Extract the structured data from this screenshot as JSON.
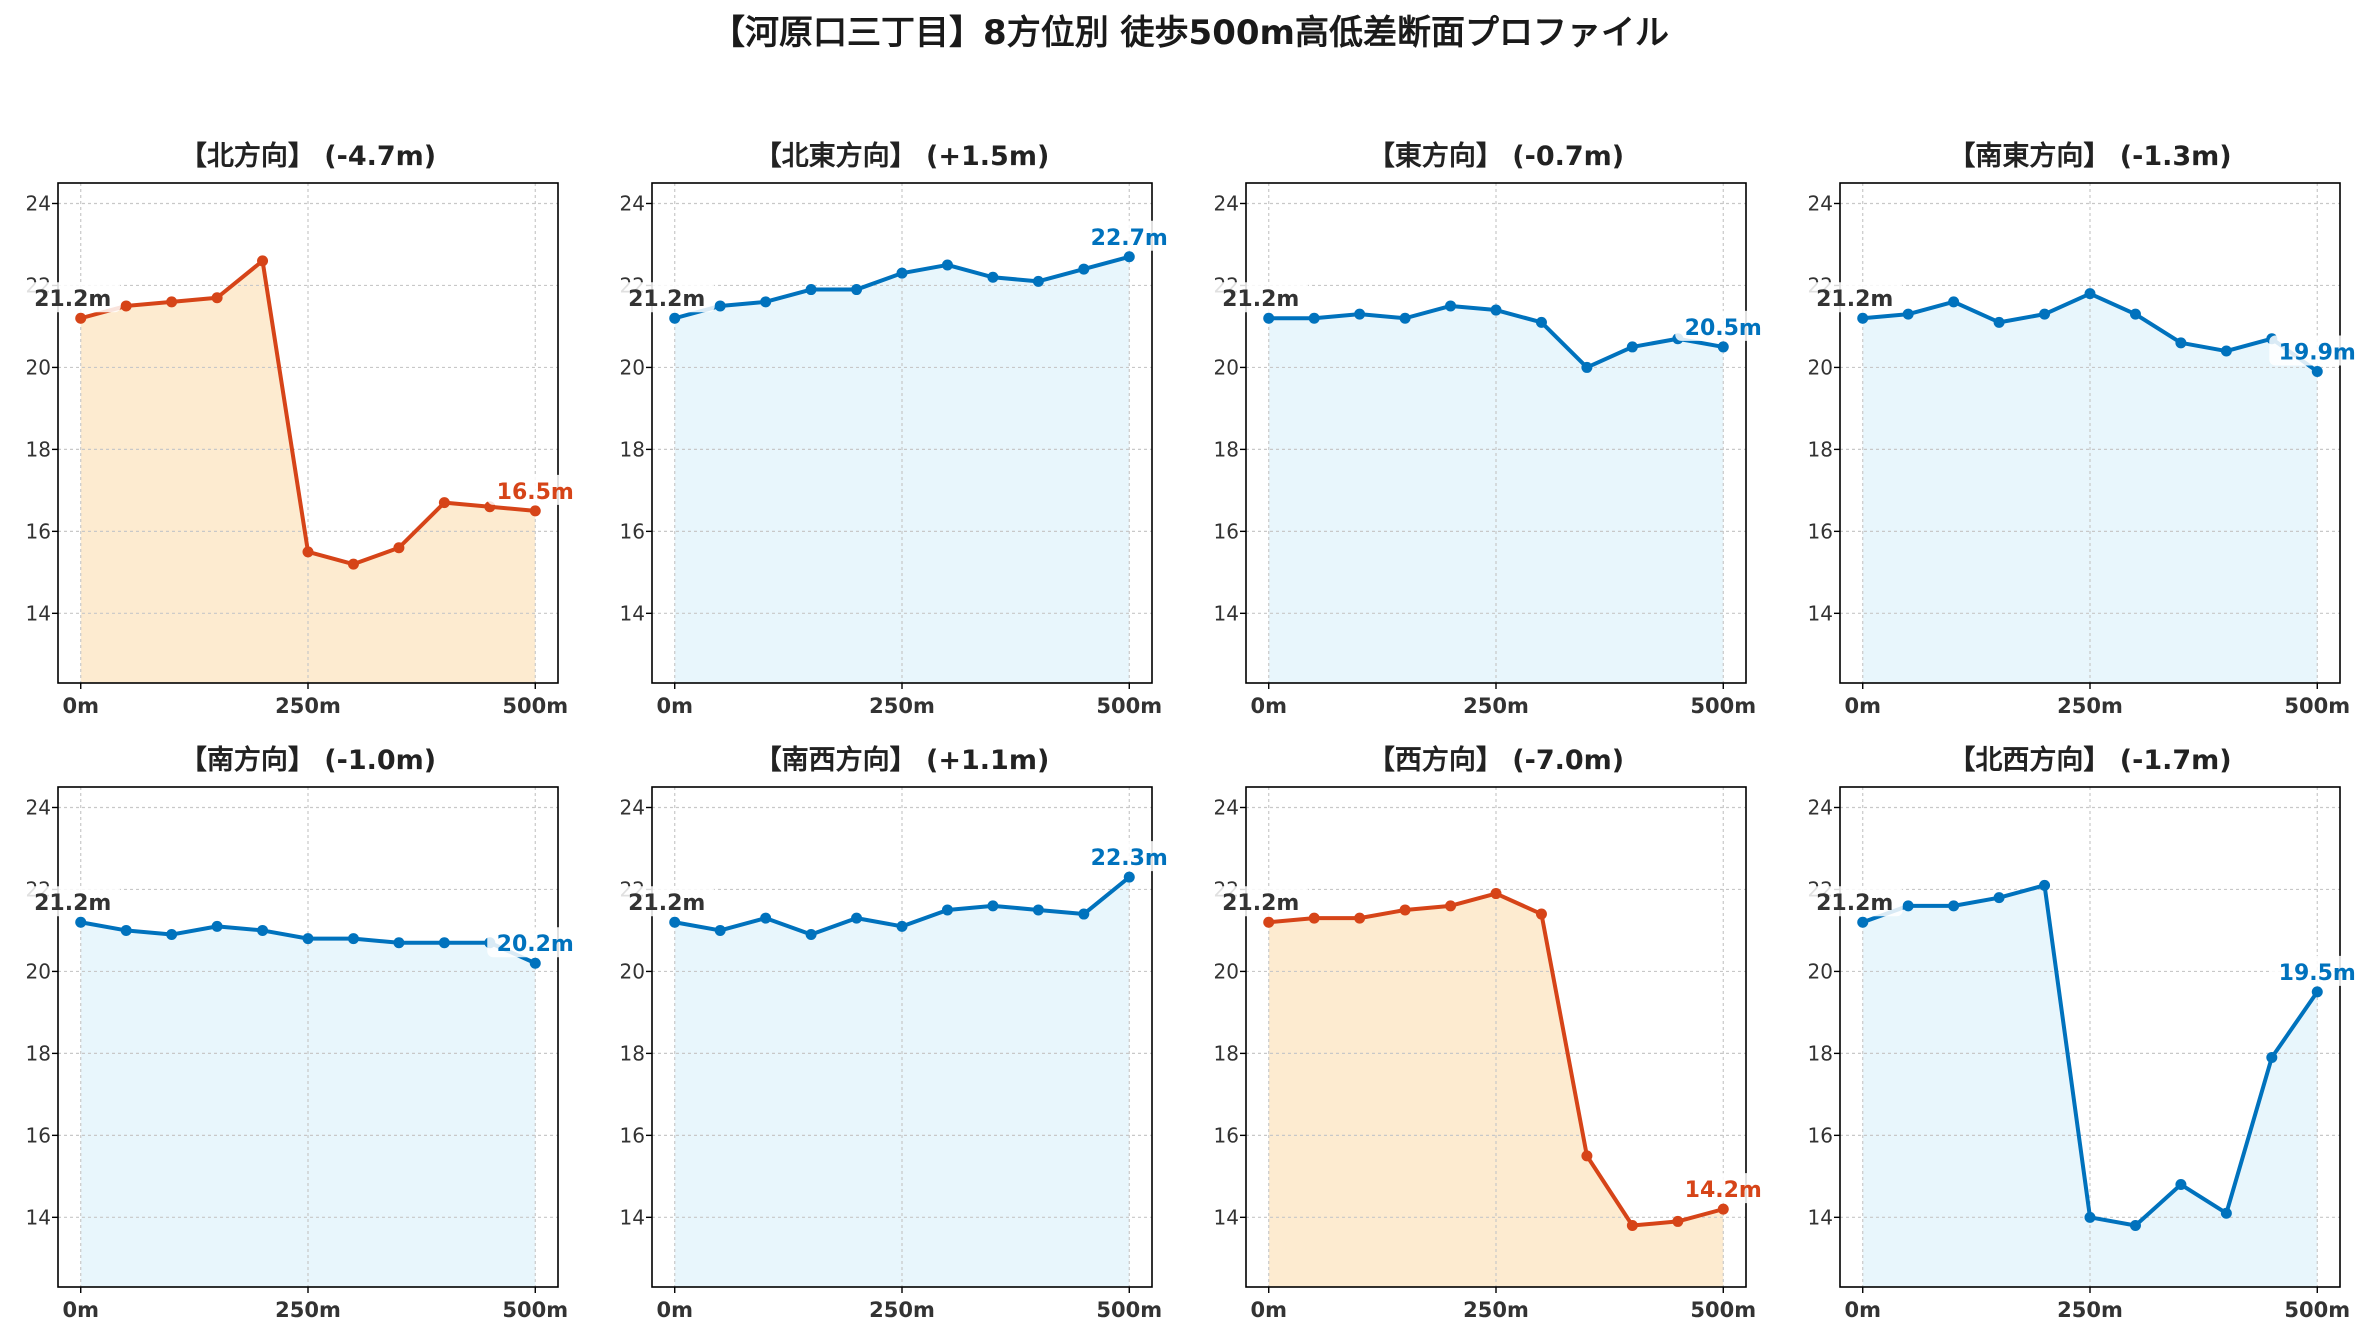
{
  "title": "【河原口三丁目】8方位別 徒歩500m高低差断面プロファイル",
  "colors": {
    "rise": "#0072bd",
    "drop": "#d64418",
    "rise_fill": "#e8f6fc",
    "drop_fill": "#fdebd0",
    "start_label": "#333333"
  },
  "chart_data": [
    {
      "type": "line",
      "title": "【北方向】 (-4.7m)",
      "x": [
        0,
        50,
        100,
        150,
        200,
        250,
        300,
        350,
        400,
        450,
        500
      ],
      "values": [
        21.2,
        21.5,
        21.6,
        21.7,
        22.6,
        15.5,
        15.2,
        15.6,
        16.7,
        16.6,
        16.5
      ],
      "start_label": "21.2m",
      "end_label": "16.5m",
      "style": "drop",
      "xticks": [
        "0m",
        "250m",
        "500m"
      ],
      "yticks": [
        "14",
        "16",
        "18",
        "20",
        "22",
        "24"
      ],
      "xlim": [
        -25,
        525
      ],
      "ylim": [
        12.3,
        24.5
      ],
      "grid": true
    },
    {
      "type": "line",
      "title": "【北東方向】 (+1.5m)",
      "x": [
        0,
        50,
        100,
        150,
        200,
        250,
        300,
        350,
        400,
        450,
        500
      ],
      "values": [
        21.2,
        21.5,
        21.6,
        21.9,
        21.9,
        22.3,
        22.5,
        22.2,
        22.1,
        22.4,
        22.7
      ],
      "start_label": "21.2m",
      "end_label": "22.7m",
      "style": "rise",
      "xticks": [
        "0m",
        "250m",
        "500m"
      ],
      "yticks": [
        "14",
        "16",
        "18",
        "20",
        "22",
        "24"
      ],
      "xlim": [
        -25,
        525
      ],
      "ylim": [
        12.3,
        24.5
      ],
      "grid": true
    },
    {
      "type": "line",
      "title": "【東方向】 (-0.7m)",
      "x": [
        0,
        50,
        100,
        150,
        200,
        250,
        300,
        350,
        400,
        450,
        500
      ],
      "values": [
        21.2,
        21.2,
        21.3,
        21.2,
        21.5,
        21.4,
        21.1,
        20.0,
        20.5,
        20.7,
        20.5
      ],
      "start_label": "21.2m",
      "end_label": "20.5m",
      "style": "rise",
      "xticks": [
        "0m",
        "250m",
        "500m"
      ],
      "yticks": [
        "14",
        "16",
        "18",
        "20",
        "22",
        "24"
      ],
      "xlim": [
        -25,
        525
      ],
      "ylim": [
        12.3,
        24.5
      ],
      "grid": true
    },
    {
      "type": "line",
      "title": "【南東方向】 (-1.3m)",
      "x": [
        0,
        50,
        100,
        150,
        200,
        250,
        300,
        350,
        400,
        450,
        500
      ],
      "values": [
        21.2,
        21.3,
        21.6,
        21.1,
        21.3,
        21.8,
        21.3,
        20.6,
        20.4,
        20.7,
        19.9
      ],
      "start_label": "21.2m",
      "end_label": "19.9m",
      "style": "rise",
      "xticks": [
        "0m",
        "250m",
        "500m"
      ],
      "yticks": [
        "14",
        "16",
        "18",
        "20",
        "22",
        "24"
      ],
      "xlim": [
        -25,
        525
      ],
      "ylim": [
        12.3,
        24.5
      ],
      "grid": true
    },
    {
      "type": "line",
      "title": "【南方向】 (-1.0m)",
      "x": [
        0,
        50,
        100,
        150,
        200,
        250,
        300,
        350,
        400,
        450,
        500
      ],
      "values": [
        21.2,
        21.0,
        20.9,
        21.1,
        21.0,
        20.8,
        20.8,
        20.7,
        20.7,
        20.7,
        20.2
      ],
      "start_label": "21.2m",
      "end_label": "20.2m",
      "style": "rise",
      "xticks": [
        "0m",
        "250m",
        "500m"
      ],
      "yticks": [
        "14",
        "16",
        "18",
        "20",
        "22",
        "24"
      ],
      "xlim": [
        -25,
        525
      ],
      "ylim": [
        12.3,
        24.5
      ],
      "grid": true
    },
    {
      "type": "line",
      "title": "【南西方向】 (+1.1m)",
      "x": [
        0,
        50,
        100,
        150,
        200,
        250,
        300,
        350,
        400,
        450,
        500
      ],
      "values": [
        21.2,
        21.0,
        21.3,
        20.9,
        21.3,
        21.1,
        21.5,
        21.6,
        21.5,
        21.4,
        22.3
      ],
      "start_label": "21.2m",
      "end_label": "22.3m",
      "style": "rise",
      "xticks": [
        "0m",
        "250m",
        "500m"
      ],
      "yticks": [
        "14",
        "16",
        "18",
        "20",
        "22",
        "24"
      ],
      "xlim": [
        -25,
        525
      ],
      "ylim": [
        12.3,
        24.5
      ],
      "grid": true
    },
    {
      "type": "line",
      "title": "【西方向】 (-7.0m)",
      "x": [
        0,
        50,
        100,
        150,
        200,
        250,
        300,
        350,
        400,
        450,
        500
      ],
      "values": [
        21.2,
        21.3,
        21.3,
        21.5,
        21.6,
        21.9,
        21.4,
        15.5,
        13.8,
        13.9,
        14.2
      ],
      "start_label": "21.2m",
      "end_label": "14.2m",
      "style": "drop",
      "xticks": [
        "0m",
        "250m",
        "500m"
      ],
      "yticks": [
        "14",
        "16",
        "18",
        "20",
        "22",
        "24"
      ],
      "xlim": [
        -25,
        525
      ],
      "ylim": [
        12.3,
        24.5
      ],
      "grid": true
    },
    {
      "type": "line",
      "title": "【北西方向】 (-1.7m)",
      "x": [
        0,
        50,
        100,
        150,
        200,
        250,
        300,
        350,
        400,
        450,
        500
      ],
      "values": [
        21.2,
        21.6,
        21.6,
        21.8,
        22.1,
        14.0,
        13.8,
        14.8,
        14.1,
        17.9,
        19.5
      ],
      "start_label": "21.2m",
      "end_label": "19.5m",
      "style": "rise",
      "xticks": [
        "0m",
        "250m",
        "500m"
      ],
      "yticks": [
        "14",
        "16",
        "18",
        "20",
        "22",
        "24"
      ],
      "xlim": [
        -25,
        525
      ],
      "ylim": [
        12.3,
        24.5
      ],
      "grid": true
    }
  ]
}
